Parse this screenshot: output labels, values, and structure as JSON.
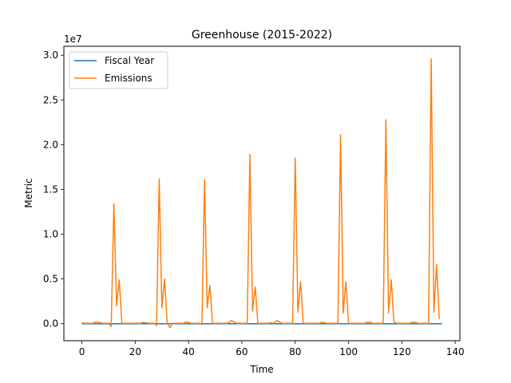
{
  "chart_data": {
    "type": "line",
    "title": "Greenhouse (2015-2022)",
    "xlabel": "Time",
    "ylabel": "Metric",
    "y_offset_text": "1e7",
    "xlim": [
      -6.75,
      141.75
    ],
    "ylim": [
      -1900000,
      31000000
    ],
    "x_ticks": [
      0,
      20,
      40,
      60,
      80,
      100,
      120,
      140
    ],
    "x_tick_labels": [
      "0",
      "20",
      "40",
      "60",
      "80",
      "100",
      "120",
      "140"
    ],
    "y_ticks": [
      0,
      5000000,
      10000000,
      15000000,
      20000000,
      25000000,
      30000000
    ],
    "y_tick_labels": [
      "0.0",
      "0.5",
      "1.0",
      "1.5",
      "2.0",
      "2.5",
      "3.0"
    ],
    "legend_position": "top-left",
    "grid": false,
    "series": [
      {
        "name": "Fiscal Year",
        "color": "#1f77b4",
        "x": [
          0,
          135
        ],
        "y": [
          0,
          0
        ]
      },
      {
        "name": "Emissions",
        "color": "#ff7f0e",
        "x": [
          0,
          1,
          2,
          3,
          4,
          5,
          6,
          7,
          8,
          9,
          10,
          11,
          12,
          13,
          14,
          15,
          16,
          17,
          18,
          19,
          20,
          21,
          22,
          23,
          24,
          25,
          26,
          27,
          28,
          29,
          30,
          31,
          32,
          33,
          34,
          35,
          36,
          37,
          38,
          39,
          40,
          41,
          42,
          43,
          44,
          45,
          46,
          47,
          48,
          49,
          50,
          51,
          52,
          53,
          54,
          55,
          56,
          57,
          58,
          59,
          60,
          61,
          62,
          63,
          64,
          65,
          66,
          67,
          68,
          69,
          70,
          71,
          72,
          73,
          74,
          75,
          76,
          77,
          78,
          79,
          80,
          81,
          82,
          83,
          84,
          85,
          86,
          87,
          88,
          89,
          90,
          91,
          92,
          93,
          94,
          95,
          96,
          97,
          98,
          99,
          100,
          101,
          102,
          103,
          104,
          105,
          106,
          107,
          108,
          109,
          110,
          111,
          112,
          113,
          114,
          115,
          116,
          117,
          118,
          119,
          120,
          121,
          122,
          123,
          124,
          125,
          126,
          127,
          128,
          129,
          130,
          131,
          132,
          133,
          134
        ],
        "y": [
          100000,
          50000,
          50000,
          50000,
          50000,
          150000,
          200000,
          100000,
          50000,
          50000,
          50000,
          -300000,
          13400000,
          2000000,
          4900000,
          50000,
          50000,
          50000,
          50000,
          50000,
          50000,
          50000,
          50000,
          150000,
          100000,
          50000,
          50000,
          50000,
          -200000,
          16200000,
          1800000,
          5000000,
          50000,
          -450000,
          50000,
          50000,
          50000,
          50000,
          50000,
          200000,
          150000,
          50000,
          50000,
          50000,
          50000,
          -100000,
          16100000,
          1800000,
          4300000,
          50000,
          50000,
          50000,
          50000,
          50000,
          50000,
          100000,
          350000,
          200000,
          50000,
          50000,
          50000,
          50000,
          50000,
          18900000,
          1400000,
          4100000,
          50000,
          50000,
          50000,
          50000,
          50000,
          100000,
          50000,
          350000,
          200000,
          50000,
          50000,
          50000,
          50000,
          50000,
          18500000,
          1300000,
          4700000,
          50000,
          50000,
          50000,
          50000,
          50000,
          50000,
          50000,
          200000,
          100000,
          50000,
          50000,
          50000,
          50000,
          50000,
          21100000,
          1200000,
          4700000,
          50000,
          50000,
          50000,
          50000,
          50000,
          50000,
          50000,
          150000,
          200000,
          50000,
          50000,
          50000,
          50000,
          50000,
          22800000,
          1200000,
          4900000,
          200000,
          50000,
          50000,
          50000,
          50000,
          50000,
          50000,
          200000,
          150000,
          50000,
          50000,
          50000,
          50000,
          50000,
          29600000,
          1300000,
          6600000,
          500000
        ]
      }
    ]
  }
}
